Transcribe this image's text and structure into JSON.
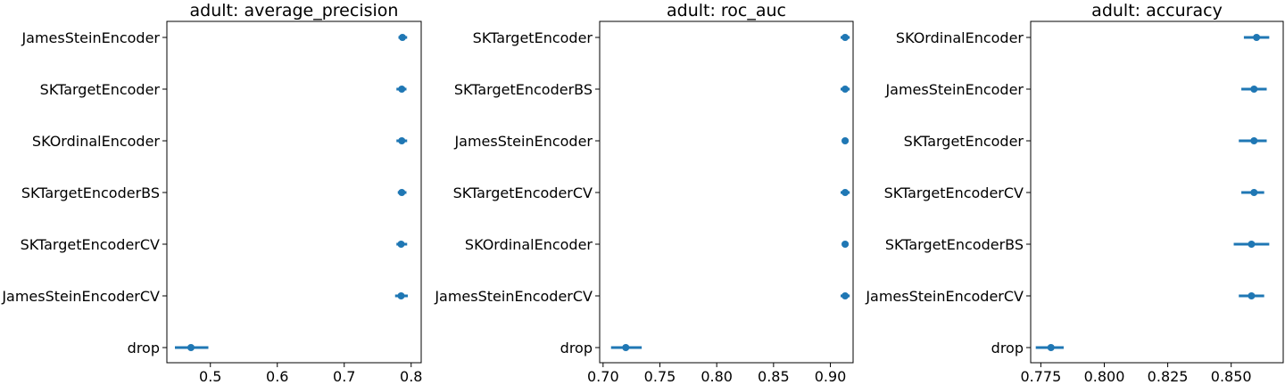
{
  "chart_data": [
    {
      "type": "scatter",
      "title": "adult: average_precision",
      "xlim": [
        0.435,
        0.815
      ],
      "xticks": [
        0.5,
        0.6,
        0.7,
        0.8
      ],
      "xtick_labels": [
        "0.5",
        "0.6",
        "0.7",
        "0.8"
      ],
      "categories": [
        "JamesSteinEncoder",
        "SKTargetEncoder",
        "SKOrdinalEncoder",
        "SKTargetEncoderBS",
        "SKTargetEncoderCV",
        "JamesSteinEncoderCV",
        "drop"
      ],
      "values": [
        0.787,
        0.786,
        0.786,
        0.786,
        0.785,
        0.785,
        0.471
      ],
      "err_low": [
        0.781,
        0.778,
        0.778,
        0.78,
        0.778,
        0.776,
        0.447
      ],
      "err_high": [
        0.794,
        0.793,
        0.794,
        0.793,
        0.794,
        0.795,
        0.497
      ]
    },
    {
      "type": "scatter",
      "title": "adult: roc_auc",
      "xlim": [
        0.697,
        0.92
      ],
      "xticks": [
        0.7,
        0.75,
        0.8,
        0.85,
        0.9
      ],
      "xtick_labels": [
        "0.70",
        "0.75",
        "0.80",
        "0.85",
        "0.90"
      ],
      "categories": [
        "SKTargetEncoder",
        "SKTargetEncoderBS",
        "JamesSteinEncoder",
        "SKTargetEncoderCV",
        "SKOrdinalEncoder",
        "JamesSteinEncoderCV",
        "drop"
      ],
      "values": [
        0.913,
        0.913,
        0.913,
        0.913,
        0.913,
        0.913,
        0.72
      ],
      "err_low": [
        0.909,
        0.909,
        0.91,
        0.909,
        0.91,
        0.909,
        0.707
      ],
      "err_high": [
        0.917,
        0.917,
        0.916,
        0.917,
        0.916,
        0.917,
        0.734
      ]
    },
    {
      "type": "scatter",
      "title": "adult: accuracy",
      "xlim": [
        0.771,
        0.8705
      ],
      "xticks": [
        0.775,
        0.8,
        0.825,
        0.85
      ],
      "xtick_labels": [
        "0.775",
        "0.800",
        "0.825",
        "0.850"
      ],
      "categories": [
        "SKOrdinalEncoder",
        "JamesSteinEncoder",
        "SKTargetEncoder",
        "SKTargetEncoderCV",
        "SKTargetEncoderBS",
        "JamesSteinEncoderCV",
        "drop"
      ],
      "values": [
        0.86,
        0.859,
        0.859,
        0.859,
        0.858,
        0.858,
        0.779
      ],
      "err_low": [
        0.855,
        0.854,
        0.853,
        0.854,
        0.851,
        0.853,
        0.773
      ],
      "err_high": [
        0.865,
        0.864,
        0.864,
        0.863,
        0.865,
        0.863,
        0.784
      ]
    }
  ]
}
